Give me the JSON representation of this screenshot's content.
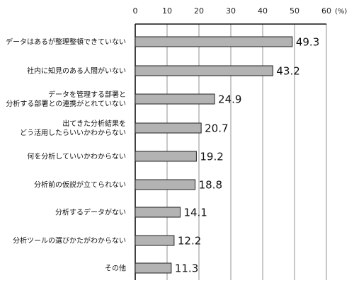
{
  "chart_data": {
    "type": "bar",
    "orientation": "horizontal",
    "xlim": [
      0,
      60
    ],
    "xticks": [
      0,
      10,
      20,
      30,
      40,
      50,
      60
    ],
    "unit_label": "(%)",
    "grid": true,
    "bar_color": "#b3b3b3",
    "categories": [
      [
        "データはあるが整理整頓できていない"
      ],
      [
        "社内に知見のある人間がいない"
      ],
      [
        "データを管理する部署と",
        "分析する部署との連携がとれていない"
      ],
      [
        "出てきた分析結果を",
        "どう活用したらいいかわからない"
      ],
      [
        "何を分析していいかわからない"
      ],
      [
        "分析前の仮説が立てられない"
      ],
      [
        "分析するデータがない"
      ],
      [
        "分析ツールの選びかたがわからない"
      ],
      [
        "その他"
      ]
    ],
    "values": [
      49.3,
      43.2,
      24.9,
      20.7,
      19.2,
      18.8,
      14.1,
      12.2,
      11.3
    ]
  }
}
